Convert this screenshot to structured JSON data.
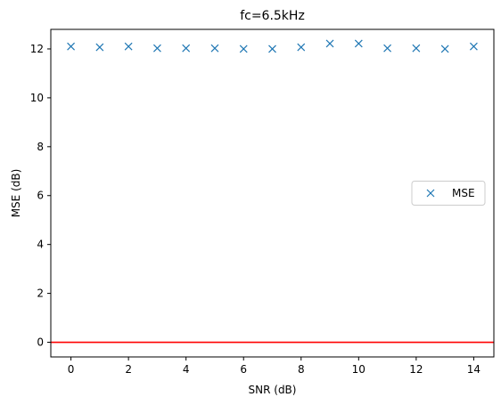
{
  "chart_data": {
    "type": "scatter",
    "title": "fc=6.5kHz",
    "xlabel": "SNR (dB)",
    "ylabel": "MSE (dB)",
    "xlim": [
      -0.7,
      14.7
    ],
    "ylim": [
      -0.6,
      12.8
    ],
    "xticks": [
      0,
      2,
      4,
      6,
      8,
      10,
      12,
      14
    ],
    "yticks": [
      0,
      2,
      4,
      6,
      8,
      10,
      12
    ],
    "grid": false,
    "legend_position": "center-right",
    "series": [
      {
        "name": "MSE",
        "marker": "x",
        "color": "#1f77b4",
        "x": [
          0,
          1,
          2,
          3,
          4,
          5,
          6,
          7,
          8,
          9,
          10,
          11,
          12,
          13,
          14
        ],
        "y": [
          12.1,
          12.07,
          12.1,
          12.03,
          12.03,
          12.03,
          12.0,
          12.0,
          12.07,
          12.22,
          12.22,
          12.03,
          12.03,
          12.0,
          12.1
        ]
      }
    ],
    "reference_line": {
      "y": 0,
      "color": "#ff0000"
    }
  }
}
